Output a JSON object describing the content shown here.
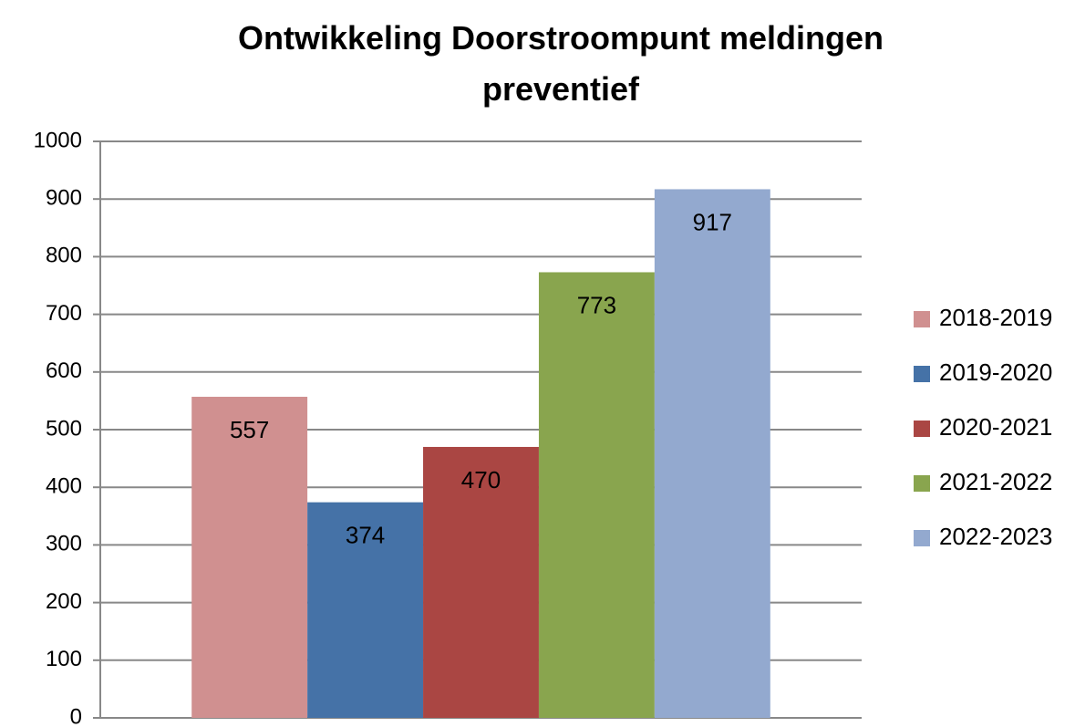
{
  "chart_data": {
    "type": "bar",
    "title": "Ontwikkeling Doorstroompunt meldingen preventief",
    "categories": [
      null
    ],
    "series": [
      {
        "name": "2018-2019",
        "color": "#d09090",
        "values": [
          557
        ]
      },
      {
        "name": "2019-2020",
        "color": "#4572a7",
        "values": [
          374
        ]
      },
      {
        "name": "2020-2021",
        "color": "#aa4643",
        "values": [
          470
        ]
      },
      {
        "name": "2021-2022",
        "color": "#89a54e",
        "values": [
          773
        ]
      },
      {
        "name": "2022-2023",
        "color": "#93a9cf",
        "values": [
          917
        ]
      }
    ],
    "ylim": [
      0,
      1000
    ],
    "yticks": [
      0,
      100,
      200,
      300,
      400,
      500,
      600,
      700,
      800,
      900,
      1000
    ],
    "grid": true,
    "legend": "right"
  }
}
